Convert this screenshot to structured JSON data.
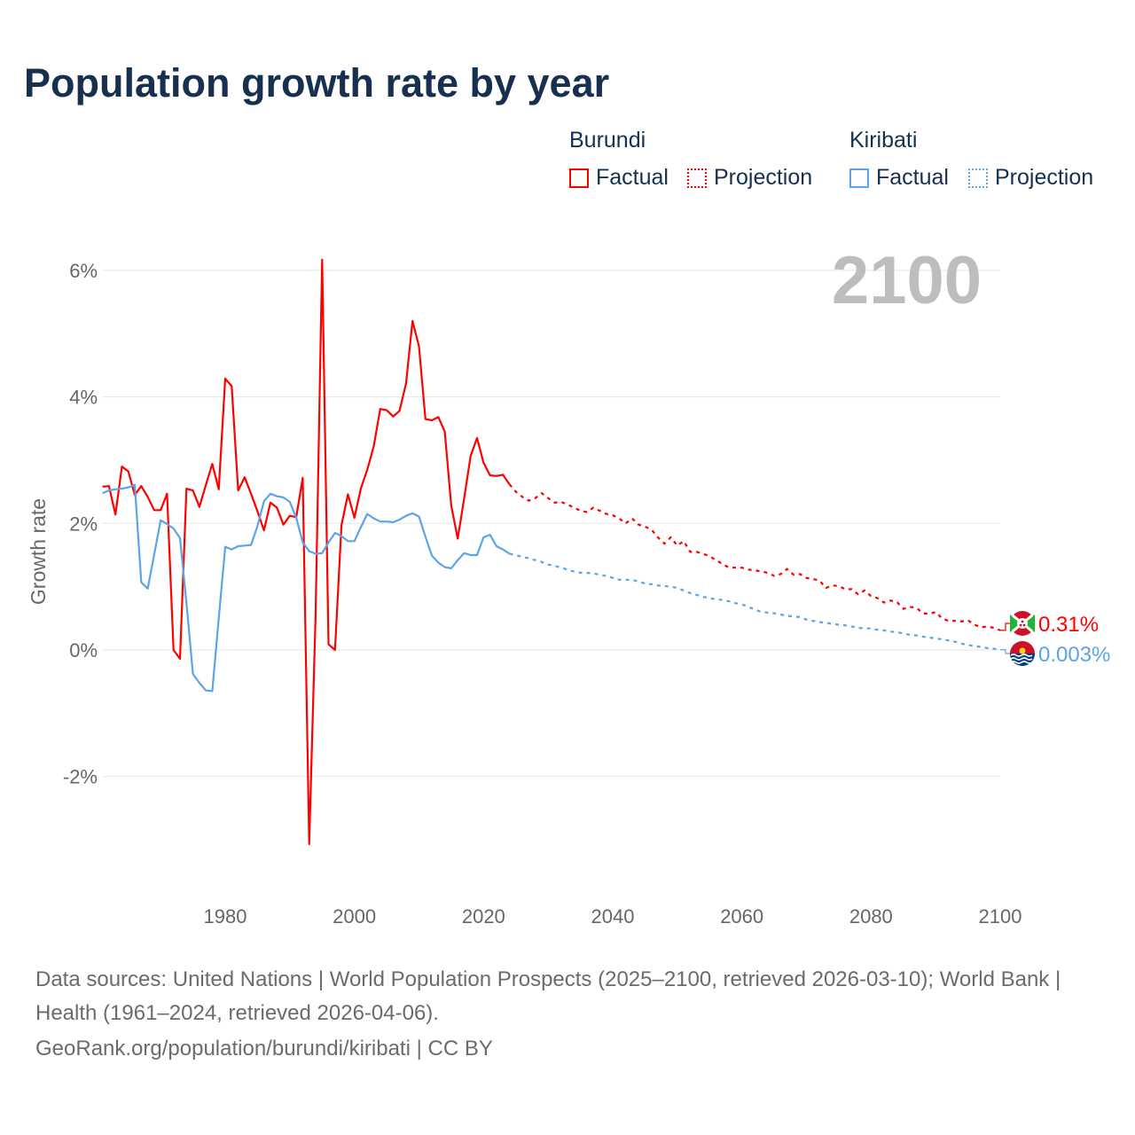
{
  "title": "Population growth rate by year",
  "legend": {
    "groups": [
      {
        "name": "Burundi",
        "color": "#ff0000",
        "factual": "Factual",
        "projection": "Projection"
      },
      {
        "name": "Kiribati",
        "color": "#5ba4e8",
        "factual": "Factual",
        "projection": "Projection"
      }
    ]
  },
  "chart_data": {
    "type": "line",
    "title": "Population growth rate by year",
    "ylabel": "Growth rate",
    "xlabel": "",
    "xlim": [
      1961,
      2100
    ],
    "ylim": [
      -3.5,
      6.5
    ],
    "x_ticks": [
      "1980",
      "2000",
      "2020",
      "2040",
      "2060",
      "2080",
      "2100"
    ],
    "y_ticks": [
      {
        "v": 6,
        "label": "6%"
      },
      {
        "v": 4,
        "label": "4%"
      },
      {
        "v": 2,
        "label": "2%"
      },
      {
        "v": 0,
        "label": "0%"
      },
      {
        "v": -2,
        "label": "-2%"
      }
    ],
    "grid": true,
    "current_year": "2100",
    "series": [
      {
        "name": "Burundi",
        "color": "#ff0000",
        "end_label": "0.31%",
        "factual_start": 1961,
        "factual": [
          2.58,
          2.59,
          2.14,
          2.9,
          2.82,
          2.45,
          2.59,
          2.42,
          2.21,
          2.21,
          2.47,
          0.0,
          -0.14,
          2.55,
          2.52,
          2.26,
          2.61,
          2.94,
          2.54,
          4.29,
          4.17,
          2.52,
          2.73,
          2.47,
          2.19,
          1.89,
          2.33,
          2.25,
          1.98,
          2.12,
          2.1,
          2.72,
          -3.07,
          0.6,
          6.17,
          0.09,
          0.0,
          1.97,
          2.46,
          2.09,
          2.55,
          2.85,
          3.22,
          3.81,
          3.79,
          3.69,
          3.78,
          4.21,
          5.2,
          4.8,
          3.65,
          3.63,
          3.68,
          3.45,
          2.28,
          1.76,
          2.4,
          3.07,
          3.35,
          2.96,
          2.76,
          2.75,
          2.77,
          2.62
        ],
        "projection_start": 2025,
        "projection": [
          2.5,
          2.42,
          2.36,
          2.4,
          2.48,
          2.4,
          2.33,
          2.34,
          2.3,
          2.25,
          2.2,
          2.18,
          2.25,
          2.2,
          2.15,
          2.13,
          2.08,
          2.0,
          2.08,
          1.98,
          1.95,
          1.9,
          1.78,
          1.68,
          1.78,
          1.65,
          1.72,
          1.55,
          1.55,
          1.52,
          1.48,
          1.42,
          1.36,
          1.3,
          1.3,
          1.3,
          1.27,
          1.26,
          1.24,
          1.22,
          1.17,
          1.2,
          1.28,
          1.19,
          1.2,
          1.14,
          1.12,
          1.1,
          0.98,
          1.02,
          1.01,
          0.96,
          0.96,
          0.88,
          0.94,
          0.85,
          0.82,
          0.75,
          0.78,
          0.76,
          0.65,
          0.68,
          0.67,
          0.58,
          0.57,
          0.6,
          0.5,
          0.46,
          0.46,
          0.45,
          0.47,
          0.4,
          0.36,
          0.37,
          0.35,
          0.31
        ]
      },
      {
        "name": "Kiribati",
        "color": "#5ba4e8",
        "end_label": "0.003%",
        "factual_start": 1961,
        "factual": [
          2.48,
          2.52,
          2.54,
          2.55,
          2.57,
          2.61,
          1.07,
          0.97,
          1.51,
          2.05,
          1.99,
          1.92,
          1.77,
          0.74,
          -0.38,
          -0.52,
          -0.64,
          -0.65,
          0.5,
          1.63,
          1.59,
          1.64,
          1.65,
          1.66,
          1.96,
          2.35,
          2.47,
          2.43,
          2.41,
          2.34,
          2.09,
          1.7,
          1.56,
          1.52,
          1.53,
          1.7,
          1.85,
          1.8,
          1.72,
          1.72,
          1.94,
          2.15,
          2.08,
          2.03,
          2.03,
          2.02,
          2.06,
          2.12,
          2.16,
          2.11,
          1.79,
          1.49,
          1.38,
          1.31,
          1.29,
          1.42,
          1.53,
          1.5,
          1.5,
          1.78,
          1.82,
          1.64,
          1.59,
          1.52
        ],
        "projection_start": 2025,
        "projection": [
          1.5,
          1.47,
          1.45,
          1.42,
          1.39,
          1.35,
          1.33,
          1.3,
          1.27,
          1.24,
          1.22,
          1.22,
          1.21,
          1.19,
          1.17,
          1.14,
          1.11,
          1.11,
          1.11,
          1.08,
          1.05,
          1.04,
          1.02,
          1.01,
          1.0,
          0.98,
          0.94,
          0.9,
          0.87,
          0.84,
          0.82,
          0.8,
          0.79,
          0.77,
          0.74,
          0.72,
          0.68,
          0.64,
          0.6,
          0.59,
          0.58,
          0.56,
          0.54,
          0.53,
          0.52,
          0.48,
          0.46,
          0.44,
          0.43,
          0.41,
          0.4,
          0.39,
          0.37,
          0.35,
          0.34,
          0.34,
          0.32,
          0.31,
          0.29,
          0.28,
          0.26,
          0.24,
          0.23,
          0.21,
          0.2,
          0.18,
          0.17,
          0.15,
          0.13,
          0.1,
          0.08,
          0.06,
          0.05,
          0.03,
          0.02,
          0.003
        ]
      }
    ]
  },
  "footer": {
    "sources": "Data sources: United Nations | World Population Prospects (2025–2100, retrieved 2026-03-10); World Bank | Health (1961–2024, retrieved 2026-04-06).",
    "credit": "GeoRank.org/population/burundi/kiribati | CC BY"
  }
}
